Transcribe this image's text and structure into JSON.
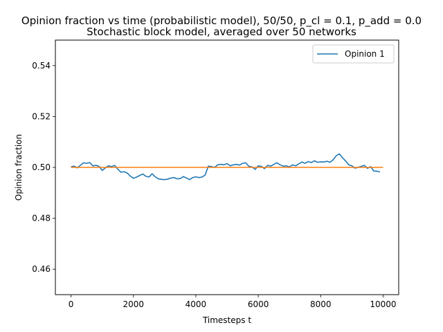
{
  "chart_data": {
    "type": "line",
    "title": "Opinion fraction vs time (probabilistic model), 50/50, p_cl = 0.1, p_add = 0.0",
    "subtitle": "Stochastic block model, averaged over 50 networks",
    "xlabel": "Timesteps t",
    "ylabel": "Opinion fraction",
    "xlim": [
      -500,
      10500
    ],
    "ylim": [
      0.45,
      0.55
    ],
    "xticks": [
      0,
      2000,
      4000,
      6000,
      8000,
      10000
    ],
    "yticks": [
      0.46,
      0.48,
      0.5,
      0.52,
      0.54
    ],
    "xtick_labels": [
      "0",
      "2000",
      "4000",
      "6000",
      "8000",
      "10000"
    ],
    "ytick_labels": [
      "0.46",
      "0.48",
      "0.50",
      "0.52",
      "0.54"
    ],
    "grid": false,
    "legend_position": "top-right",
    "series": [
      {
        "name": "Opinion 1",
        "color": "#1f77b4",
        "x": [
          0,
          100,
          200,
          300,
          400,
          500,
          600,
          700,
          800,
          900,
          1000,
          1100,
          1200,
          1300,
          1400,
          1500,
          1600,
          1700,
          1800,
          1900,
          2000,
          2100,
          2200,
          2300,
          2400,
          2500,
          2600,
          2700,
          2800,
          2900,
          3000,
          3100,
          3200,
          3300,
          3400,
          3500,
          3600,
          3700,
          3800,
          3900,
          4000,
          4100,
          4200,
          4300,
          4400,
          4500,
          4600,
          4700,
          4800,
          4900,
          5000,
          5100,
          5200,
          5300,
          5400,
          5500,
          5600,
          5700,
          5800,
          5900,
          6000,
          6100,
          6200,
          6300,
          6400,
          6500,
          6600,
          6700,
          6800,
          6900,
          7000,
          7100,
          7200,
          7300,
          7400,
          7500,
          7600,
          7700,
          7800,
          7900,
          8000,
          8100,
          8200,
          8300,
          8400,
          8500,
          8600,
          8700,
          8800,
          8900,
          9000,
          9100,
          9200,
          9300,
          9400,
          9500,
          9600,
          9700,
          9800,
          9900
        ],
        "y": [
          0.5002,
          0.5005,
          0.4998,
          0.5008,
          0.5018,
          0.5016,
          0.5019,
          0.5006,
          0.5008,
          0.5004,
          0.4988,
          0.4998,
          0.5006,
          0.5003,
          0.5008,
          0.4993,
          0.4981,
          0.4983,
          0.4978,
          0.4966,
          0.4957,
          0.4962,
          0.4968,
          0.4974,
          0.4965,
          0.4962,
          0.4975,
          0.4963,
          0.4955,
          0.4953,
          0.4952,
          0.4954,
          0.4958,
          0.496,
          0.4955,
          0.4956,
          0.4964,
          0.4958,
          0.4952,
          0.496,
          0.4963,
          0.496,
          0.4962,
          0.497,
          0.5005,
          0.5003,
          0.5,
          0.501,
          0.5012,
          0.501,
          0.5015,
          0.5006,
          0.501,
          0.5012,
          0.5009,
          0.5016,
          0.5018,
          0.5004,
          0.5002,
          0.4992,
          0.5006,
          0.5004,
          0.4995,
          0.5008,
          0.5005,
          0.5012,
          0.5018,
          0.501,
          0.5005,
          0.5006,
          0.5002,
          0.501,
          0.5006,
          0.5014,
          0.5021,
          0.5016,
          0.5023,
          0.5019,
          0.5026,
          0.502,
          0.5022,
          0.5021,
          0.5024,
          0.502,
          0.503,
          0.5046,
          0.5053,
          0.5038,
          0.5025,
          0.501,
          0.5006,
          0.4997,
          0.5,
          0.5004,
          0.5008,
          0.4996,
          0.5003,
          0.4986,
          0.4985,
          0.4982
        ]
      },
      {
        "name": "",
        "color": "#ff7f0e",
        "x": [
          0,
          10000
        ],
        "y": [
          0.5,
          0.5
        ]
      }
    ]
  }
}
